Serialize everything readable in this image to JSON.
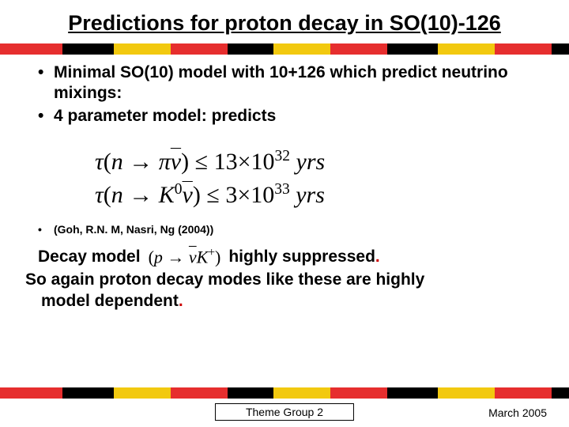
{
  "title": "Predictions for proton decay in SO(10)-126",
  "stripe_colors": [
    "#e62e2e",
    "#000000",
    "#f2c90f",
    "#e62e2e",
    "#000000",
    "#f2c90f",
    "#e62e2e",
    "#000000",
    "#f2c90f",
    "#e62e2e",
    "#000000"
  ],
  "stripe_widths": [
    11,
    9,
    10,
    10,
    8,
    10,
    10,
    9,
    10,
    10,
    3
  ],
  "bullets": {
    "item1": "Minimal SO(10) model with 10+126 which predict neutrino mixings:",
    "item2": "4 parameter model: predicts"
  },
  "equations": {
    "line1_lhs": "τ(n → πν̄) ≤ 13×10",
    "line1_exp": "32",
    "line1_unit": " yrs",
    "line2_lhs": "τ(n → K",
    "line2_sup0": "0",
    "line2_mid": "ν̄) ≤ 3×10",
    "line2_exp": "33",
    "line2_unit": "  yrs"
  },
  "reference": "(Goh, R.N. M, Nasri, Ng (2004))",
  "decay": {
    "part1": "Decay model",
    "inline_eq_a": "(p → ",
    "inline_eq_nu": "ν̄",
    "inline_eq_b": "K",
    "inline_eq_sup": "+",
    "inline_eq_c": ")",
    "part2": "highly suppressed  ",
    "line2": "So again proton decay modes like these are highly",
    "line3_a": "model dependent",
    "dot": "."
  },
  "footer": {
    "center": "Theme Group 2",
    "right": "March 2005"
  }
}
